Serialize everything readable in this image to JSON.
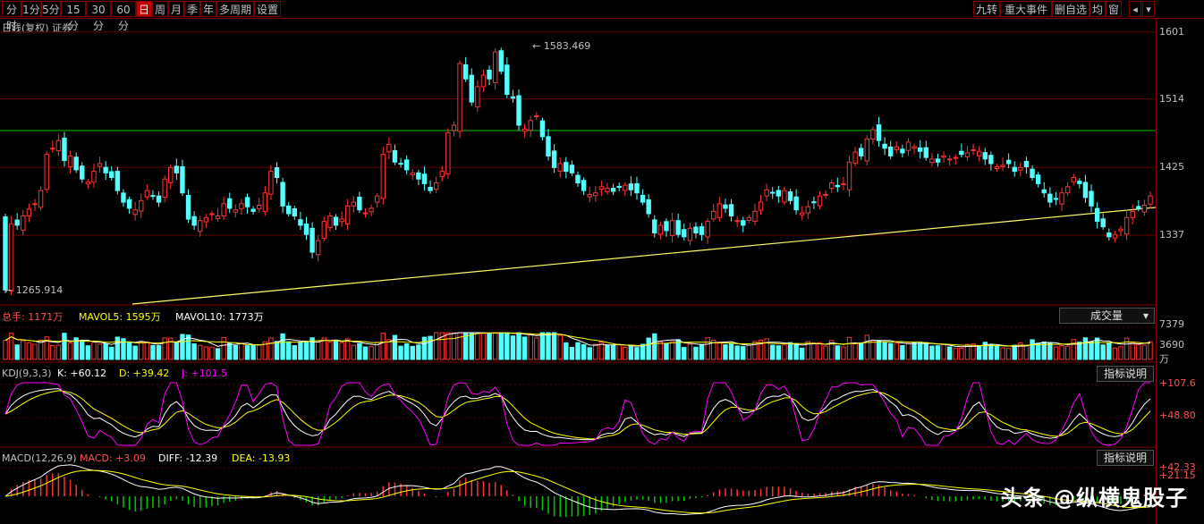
{
  "toolbar": {
    "left": [
      {
        "label": "分时"
      },
      {
        "label": "1分"
      },
      {
        "label": "5分"
      },
      {
        "label": "15分"
      },
      {
        "label": "30分"
      },
      {
        "label": "60分"
      },
      {
        "label": "日",
        "active": true
      },
      {
        "label": "周"
      },
      {
        "label": "月"
      },
      {
        "label": "季"
      },
      {
        "label": "年"
      },
      {
        "label": "多周期"
      },
      {
        "label": "设置"
      }
    ],
    "right": [
      {
        "label": "九转"
      },
      {
        "label": "重大事件"
      },
      {
        "label": "删自选"
      },
      {
        "label": "均"
      },
      {
        "label": "窗"
      }
    ],
    "settings_icon": "gear-icon",
    "nav_icons": [
      "triangle-left-icon",
      "triangle-down-icon"
    ]
  },
  "main": {
    "title": "日线(复权) 证券",
    "high_label": "1583.469",
    "low_label": "1265.914",
    "y_ticks": [
      "1601",
      "1514",
      "1425",
      "1337"
    ]
  },
  "volume": {
    "total_label": "总手: 1171万",
    "ma5_label": "MAVOL5: 1595万",
    "ma10_label": "MAVOL10: 1773万",
    "dropdown": "成交量",
    "y_ticks": [
      "7379",
      "3690"
    ],
    "unit": "万"
  },
  "kdj": {
    "name": "KDJ(9,3,3)",
    "k_label": "K: +60.12",
    "d_label": "D: +39.42",
    "j_label": "J: +101.5",
    "button": "指标说明",
    "y_ticks": [
      "+107.6",
      "+48.80"
    ]
  },
  "macd": {
    "name": "MACD(12,26,9)",
    "macd_label": "MACD: +3.09",
    "diff_label": "DIFF: -12.39",
    "dea_label": "DEA: -13.93",
    "button": "指标说明",
    "y_ticks": [
      "+42.33",
      "+21.15"
    ]
  },
  "watermark": "头条 @纵横鬼股子",
  "colors": {
    "up": "#ff3232",
    "down": "#54ffff",
    "ma5": "#ffffff",
    "ma10": "#ffff00",
    "k": "#ffffff",
    "d": "#ffff00",
    "j": "#ff00ff",
    "hline": "#00c800",
    "trend": "#ffff66"
  },
  "chart_data": {
    "type": "candlestick",
    "ylim": [
      1250,
      1610
    ],
    "closes": [
      1265.9,
      1352,
      1350,
      1362,
      1371,
      1378,
      1395,
      1442,
      1450,
      1460,
      1434,
      1440,
      1422,
      1410,
      1406,
      1420,
      1430,
      1418,
      1412,
      1395,
      1380,
      1372,
      1370,
      1382,
      1395,
      1388,
      1380,
      1410,
      1425,
      1418,
      1392,
      1358,
      1350,
      1356,
      1360,
      1365,
      1362,
      1378,
      1372,
      1370,
      1378,
      1374,
      1368,
      1376,
      1392,
      1420,
      1412,
      1375,
      1365,
      1362,
      1350,
      1338,
      1315,
      1330,
      1355,
      1362,
      1350,
      1358,
      1375,
      1380,
      1370,
      1366,
      1372,
      1388,
      1442,
      1455,
      1432,
      1430,
      1422,
      1418,
      1410,
      1404,
      1395,
      1405,
      1420,
      1470,
      1480,
      1560,
      1540,
      1510,
      1530,
      1545,
      1540,
      1575,
      1550,
      1520,
      1515,
      1480,
      1475,
      1486,
      1492,
      1465,
      1440,
      1425,
      1430,
      1420,
      1418,
      1405,
      1395,
      1390,
      1392,
      1400,
      1398,
      1394,
      1400,
      1402,
      1396,
      1392,
      1380,
      1365,
      1340,
      1350,
      1343,
      1356,
      1338,
      1335,
      1346,
      1340,
      1338,
      1355,
      1368,
      1378,
      1372,
      1362,
      1356,
      1350,
      1360,
      1368,
      1380,
      1396,
      1392,
      1388,
      1395,
      1382,
      1370,
      1366,
      1374,
      1380,
      1388,
      1390,
      1405,
      1400,
      1404,
      1432,
      1445,
      1440,
      1462,
      1474,
      1460,
      1450,
      1440,
      1452,
      1444,
      1458,
      1452,
      1446,
      1438,
      1436,
      1432,
      1440,
      1436,
      1438,
      1442,
      1444,
      1448,
      1446,
      1436,
      1430,
      1426,
      1428,
      1430,
      1420,
      1425,
      1426,
      1412,
      1404,
      1392,
      1380,
      1384,
      1392,
      1400,
      1412,
      1404,
      1386,
      1375,
      1355,
      1348,
      1335,
      1338,
      1345,
      1360,
      1368,
      1372,
      1376,
      1388
    ]
  }
}
